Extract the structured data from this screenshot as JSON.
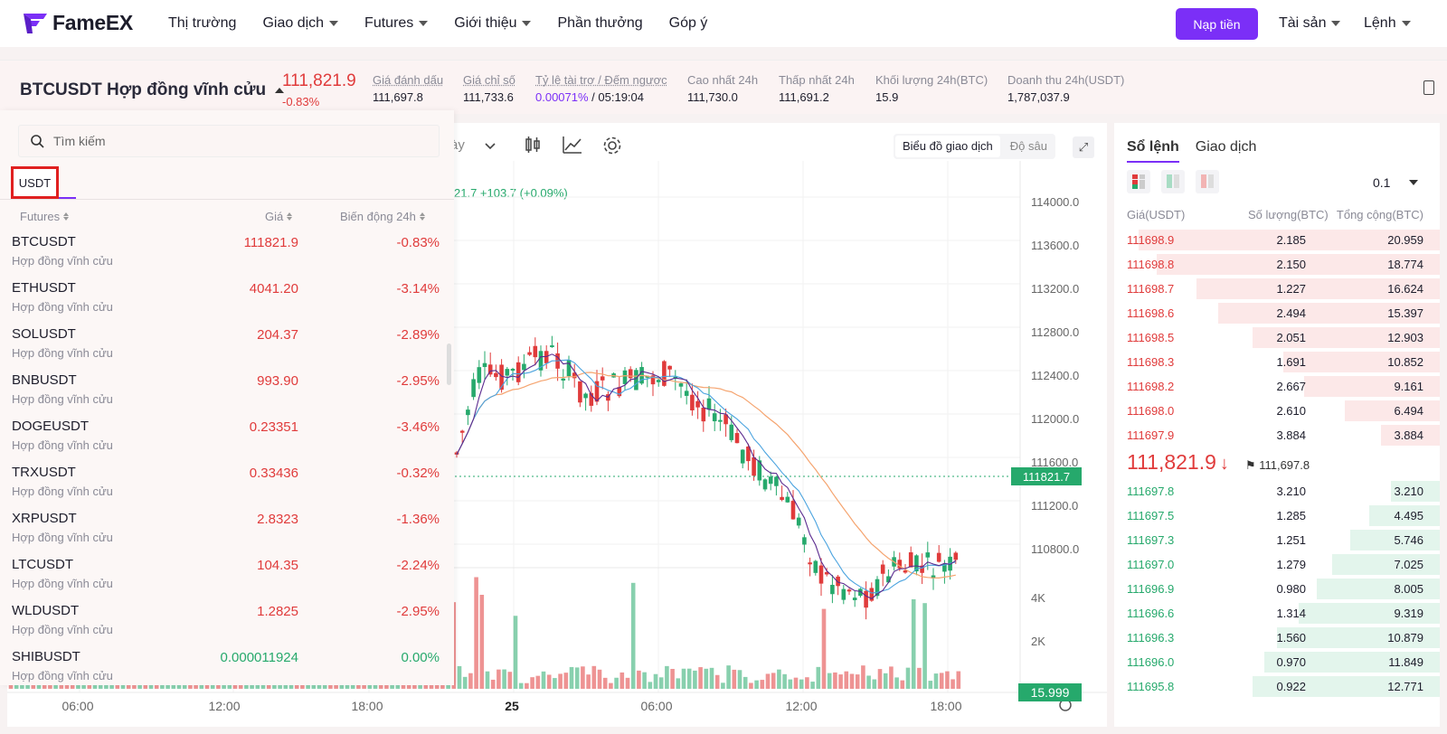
{
  "nav": {
    "brand": "FameEX",
    "menu": [
      {
        "label": "Thị trường",
        "dropdown": false
      },
      {
        "label": "Giao dịch",
        "dropdown": true
      },
      {
        "label": "Futures",
        "dropdown": true
      },
      {
        "label": "Giới thiệu",
        "dropdown": true
      },
      {
        "label": "Phần thưởng",
        "dropdown": false
      },
      {
        "label": "Góp ý",
        "dropdown": false
      }
    ],
    "deposit": "Nạp tiền",
    "assets": "Tài sản",
    "orders": "Lệnh"
  },
  "ticker": {
    "symbol": "BTCUSDT Hợp đồng vĩnh cửu",
    "last_price": "111,821.9",
    "change": "-0.83%",
    "stats": [
      {
        "label": "Giá đánh dấu",
        "value": "111,697.8"
      },
      {
        "label": "Giá chỉ số",
        "value": "111,733.6"
      },
      {
        "label": "Tỷ lệ tài trợ / Đếm ngược",
        "value_rate": "0.00071%",
        "value_time": " / 05:19:04"
      },
      {
        "label": "Cao nhất 24h",
        "value": "111,730.0"
      },
      {
        "label": "Thấp nhất 24h",
        "value": "111,691.2"
      },
      {
        "label": "Khối lượng 24h(BTC)",
        "value": "15.9"
      },
      {
        "label": "Doanh thu 24h(USDT)",
        "value": "1,787,037.9"
      }
    ]
  },
  "chart": {
    "interval_partial": "ày",
    "mode_chart": "Biểu đồ giao dịch",
    "mode_depth": "Độ sâu",
    "ohlc_partial": "21.7  +103.7 (+0.09%)",
    "price_ticks": [
      "114000.0",
      "113600.0",
      "113200.0",
      "112800.0",
      "112400.0",
      "112000.0",
      "111600.0",
      "111200.0",
      "110800.0"
    ],
    "current_price": "111821.7",
    "volume_ticks": [
      "4K",
      "2K"
    ],
    "current_volume": "15.999",
    "time_ticks": [
      "06:00",
      "12:00",
      "18:00",
      "25",
      "06:00",
      "12:00",
      "18:00"
    ],
    "colors": {
      "up": "#26a96c",
      "down": "#e03b3b",
      "ma_slow": "#f5a46f",
      "ma_mid": "#4aa3df",
      "ma_fast": "#5b2b8f"
    }
  },
  "orderbook": {
    "tab_book": "Sổ lệnh",
    "tab_trades": "Giao dịch",
    "precision": "0.1",
    "col_price": "Giá(USDT)",
    "col_qty": "Số lượng(BTC)",
    "col_total": "Tổng cộng(BTC)",
    "asks": [
      {
        "price": "111698.9",
        "qty": "2.185",
        "total": "20.959",
        "depth": 0.98
      },
      {
        "price": "111698.8",
        "qty": "2.150",
        "total": "18.774",
        "depth": 0.92
      },
      {
        "price": "111698.7",
        "qty": "1.227",
        "total": "16.624",
        "depth": 0.79
      },
      {
        "price": "111698.6",
        "qty": "2.494",
        "total": "15.397",
        "depth": 0.72
      },
      {
        "price": "111698.5",
        "qty": "2.051",
        "total": "12.903",
        "depth": 0.61
      },
      {
        "price": "111698.3",
        "qty": "1.691",
        "total": "10.852",
        "depth": 0.51
      },
      {
        "price": "111698.2",
        "qty": "2.667",
        "total": "9.161",
        "depth": 0.44
      },
      {
        "price": "111698.0",
        "qty": "2.610",
        "total": "6.494",
        "depth": 0.31
      },
      {
        "price": "111697.9",
        "qty": "3.884",
        "total": "3.884",
        "depth": 0.19
      }
    ],
    "mid_price": "111,821.9",
    "mid_arrow": "↓",
    "mark_price": "111,697.8",
    "bids": [
      {
        "price": "111697.8",
        "qty": "3.210",
        "total": "3.210",
        "depth": 0.16
      },
      {
        "price": "111697.5",
        "qty": "1.285",
        "total": "4.495",
        "depth": 0.23
      },
      {
        "price": "111697.3",
        "qty": "1.251",
        "total": "5.746",
        "depth": 0.29
      },
      {
        "price": "111697.0",
        "qty": "1.279",
        "total": "7.025",
        "depth": 0.35
      },
      {
        "price": "111696.9",
        "qty": "0.980",
        "total": "8.005",
        "depth": 0.4
      },
      {
        "price": "111696.6",
        "qty": "1.314",
        "total": "9.319",
        "depth": 0.46
      },
      {
        "price": "111696.3",
        "qty": "1.560",
        "total": "10.879",
        "depth": 0.53
      },
      {
        "price": "111696.0",
        "qty": "0.970",
        "total": "11.849",
        "depth": 0.57
      },
      {
        "price": "111695.8",
        "qty": "0.922",
        "total": "12.771",
        "depth": 0.61
      }
    ]
  },
  "market_dropdown": {
    "search_placeholder": "Tìm kiếm",
    "tab": "USDT",
    "col_futures": "Futures",
    "col_price": "Giá",
    "col_change": "Biến động 24h",
    "items": [
      {
        "symbol": "BTCUSDT",
        "sub": "Hợp đồng vĩnh cửu",
        "price": "111821.9",
        "change": "-0.83%",
        "dir": "down"
      },
      {
        "symbol": "ETHUSDT",
        "sub": "Hợp đồng vĩnh cửu",
        "price": "4041.20",
        "change": "-3.14%",
        "dir": "down"
      },
      {
        "symbol": "SOLUSDT",
        "sub": "Hợp đồng vĩnh cửu",
        "price": "204.37",
        "change": "-2.89%",
        "dir": "down"
      },
      {
        "symbol": "BNBUSDT",
        "sub": "Hợp đồng vĩnh cửu",
        "price": "993.90",
        "change": "-2.95%",
        "dir": "down"
      },
      {
        "symbol": "DOGEUSDT",
        "sub": "Hợp đồng vĩnh cửu",
        "price": "0.23351",
        "change": "-3.46%",
        "dir": "down"
      },
      {
        "symbol": "TRXUSDT",
        "sub": "Hợp đồng vĩnh cửu",
        "price": "0.33436",
        "change": "-0.32%",
        "dir": "down"
      },
      {
        "symbol": "XRPUSDT",
        "sub": "Hợp đồng vĩnh cửu",
        "price": "2.8323",
        "change": "-1.36%",
        "dir": "down"
      },
      {
        "symbol": "LTCUSDT",
        "sub": "Hợp đồng vĩnh cửu",
        "price": "104.35",
        "change": "-2.24%",
        "dir": "down"
      },
      {
        "symbol": "WLDUSDT",
        "sub": "Hợp đồng vĩnh cửu",
        "price": "1.2825",
        "change": "-2.95%",
        "dir": "down"
      },
      {
        "symbol": "SHIBUSDT",
        "sub": "Hợp đồng vĩnh cửu",
        "price": "0.000011924",
        "change": "0.00%",
        "dir": "flat"
      }
    ]
  }
}
